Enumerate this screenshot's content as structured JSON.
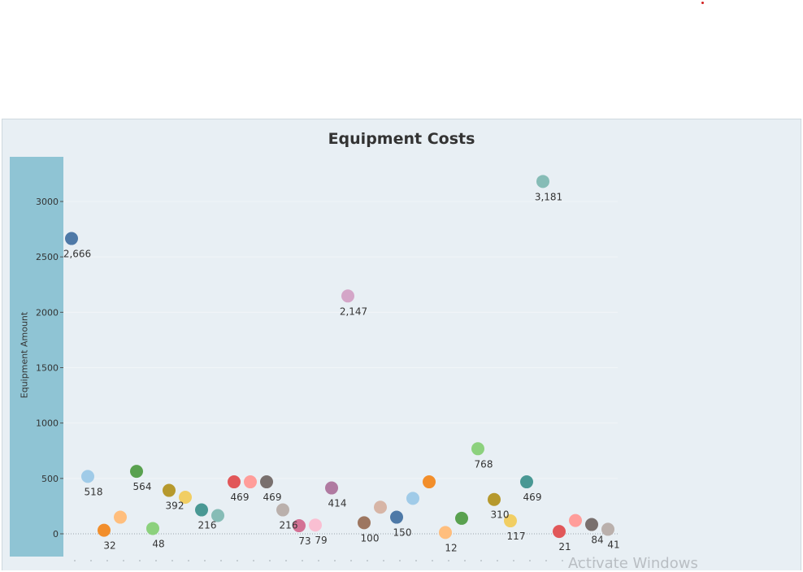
{
  "watermark": "Activate Windows",
  "chart_data": {
    "type": "scatter",
    "title": "Equipment Costs",
    "xlabel": "",
    "ylabel": "Equipment Amount",
    "ylim": [
      -200,
      3450
    ],
    "yticks": [
      0,
      500,
      1000,
      1500,
      2000,
      2500,
      3000
    ],
    "x_count": 34,
    "grid": true,
    "legend": "none",
    "points": [
      {
        "x": 1,
        "y": 2666,
        "label": "2,666",
        "color": "#4e79a7"
      },
      {
        "x": 2,
        "y": 518,
        "label": "518",
        "color": "#a0cbe8"
      },
      {
        "x": 3,
        "y": 32,
        "label": "32",
        "color": "#f28e2b"
      },
      {
        "x": 4,
        "y": 150,
        "label": "",
        "color": "#ffbe7d"
      },
      {
        "x": 5,
        "y": 564,
        "label": "564",
        "color": "#59a14f"
      },
      {
        "x": 6,
        "y": 48,
        "label": "48",
        "color": "#8cd17d"
      },
      {
        "x": 7,
        "y": 392,
        "label": "392",
        "color": "#b6992d"
      },
      {
        "x": 8,
        "y": 330,
        "label": "",
        "color": "#f1ce63"
      },
      {
        "x": 9,
        "y": 216,
        "label": "216",
        "color": "#499894"
      },
      {
        "x": 10,
        "y": 165,
        "label": "",
        "color": "#86bcb6"
      },
      {
        "x": 11,
        "y": 469,
        "label": "469",
        "color": "#e15759"
      },
      {
        "x": 12,
        "y": 469,
        "label": "",
        "color": "#ff9d9a"
      },
      {
        "x": 13,
        "y": 469,
        "label": "469",
        "color": "#79706e"
      },
      {
        "x": 14,
        "y": 216,
        "label": "216",
        "color": "#bab0ac"
      },
      {
        "x": 15,
        "y": 73,
        "label": "73",
        "color": "#d37295"
      },
      {
        "x": 16,
        "y": 79,
        "label": "79",
        "color": "#fabfd2"
      },
      {
        "x": 17,
        "y": 414,
        "label": "414",
        "color": "#b07aa1"
      },
      {
        "x": 18,
        "y": 2147,
        "label": "2,147",
        "color": "#d4a6c8"
      },
      {
        "x": 19,
        "y": 100,
        "label": "100",
        "color": "#9d7660"
      },
      {
        "x": 20,
        "y": 240,
        "label": "",
        "color": "#d7b5a6"
      },
      {
        "x": 21,
        "y": 150,
        "label": "150",
        "color": "#4e79a7"
      },
      {
        "x": 22,
        "y": 320,
        "label": "",
        "color": "#a0cbe8"
      },
      {
        "x": 23,
        "y": 469,
        "label": "",
        "color": "#f28e2b"
      },
      {
        "x": 24,
        "y": 12,
        "label": "12",
        "color": "#ffbe7d"
      },
      {
        "x": 25,
        "y": 140,
        "label": "",
        "color": "#59a14f"
      },
      {
        "x": 26,
        "y": 768,
        "label": "768",
        "color": "#8cd17d"
      },
      {
        "x": 27,
        "y": 310,
        "label": "310",
        "color": "#b6992d"
      },
      {
        "x": 28,
        "y": 117,
        "label": "117",
        "color": "#f1ce63"
      },
      {
        "x": 29,
        "y": 469,
        "label": "469",
        "color": "#499894"
      },
      {
        "x": 30,
        "y": 3181,
        "label": "3,181",
        "color": "#86bcb6"
      },
      {
        "x": 31,
        "y": 21,
        "label": "21",
        "color": "#e15759"
      },
      {
        "x": 32,
        "y": 120,
        "label": "",
        "color": "#ff9d9a"
      },
      {
        "x": 33,
        "y": 84,
        "label": "84",
        "color": "#79706e"
      },
      {
        "x": 34,
        "y": 41,
        "label": "41",
        "color": "#bab0ac"
      }
    ]
  }
}
